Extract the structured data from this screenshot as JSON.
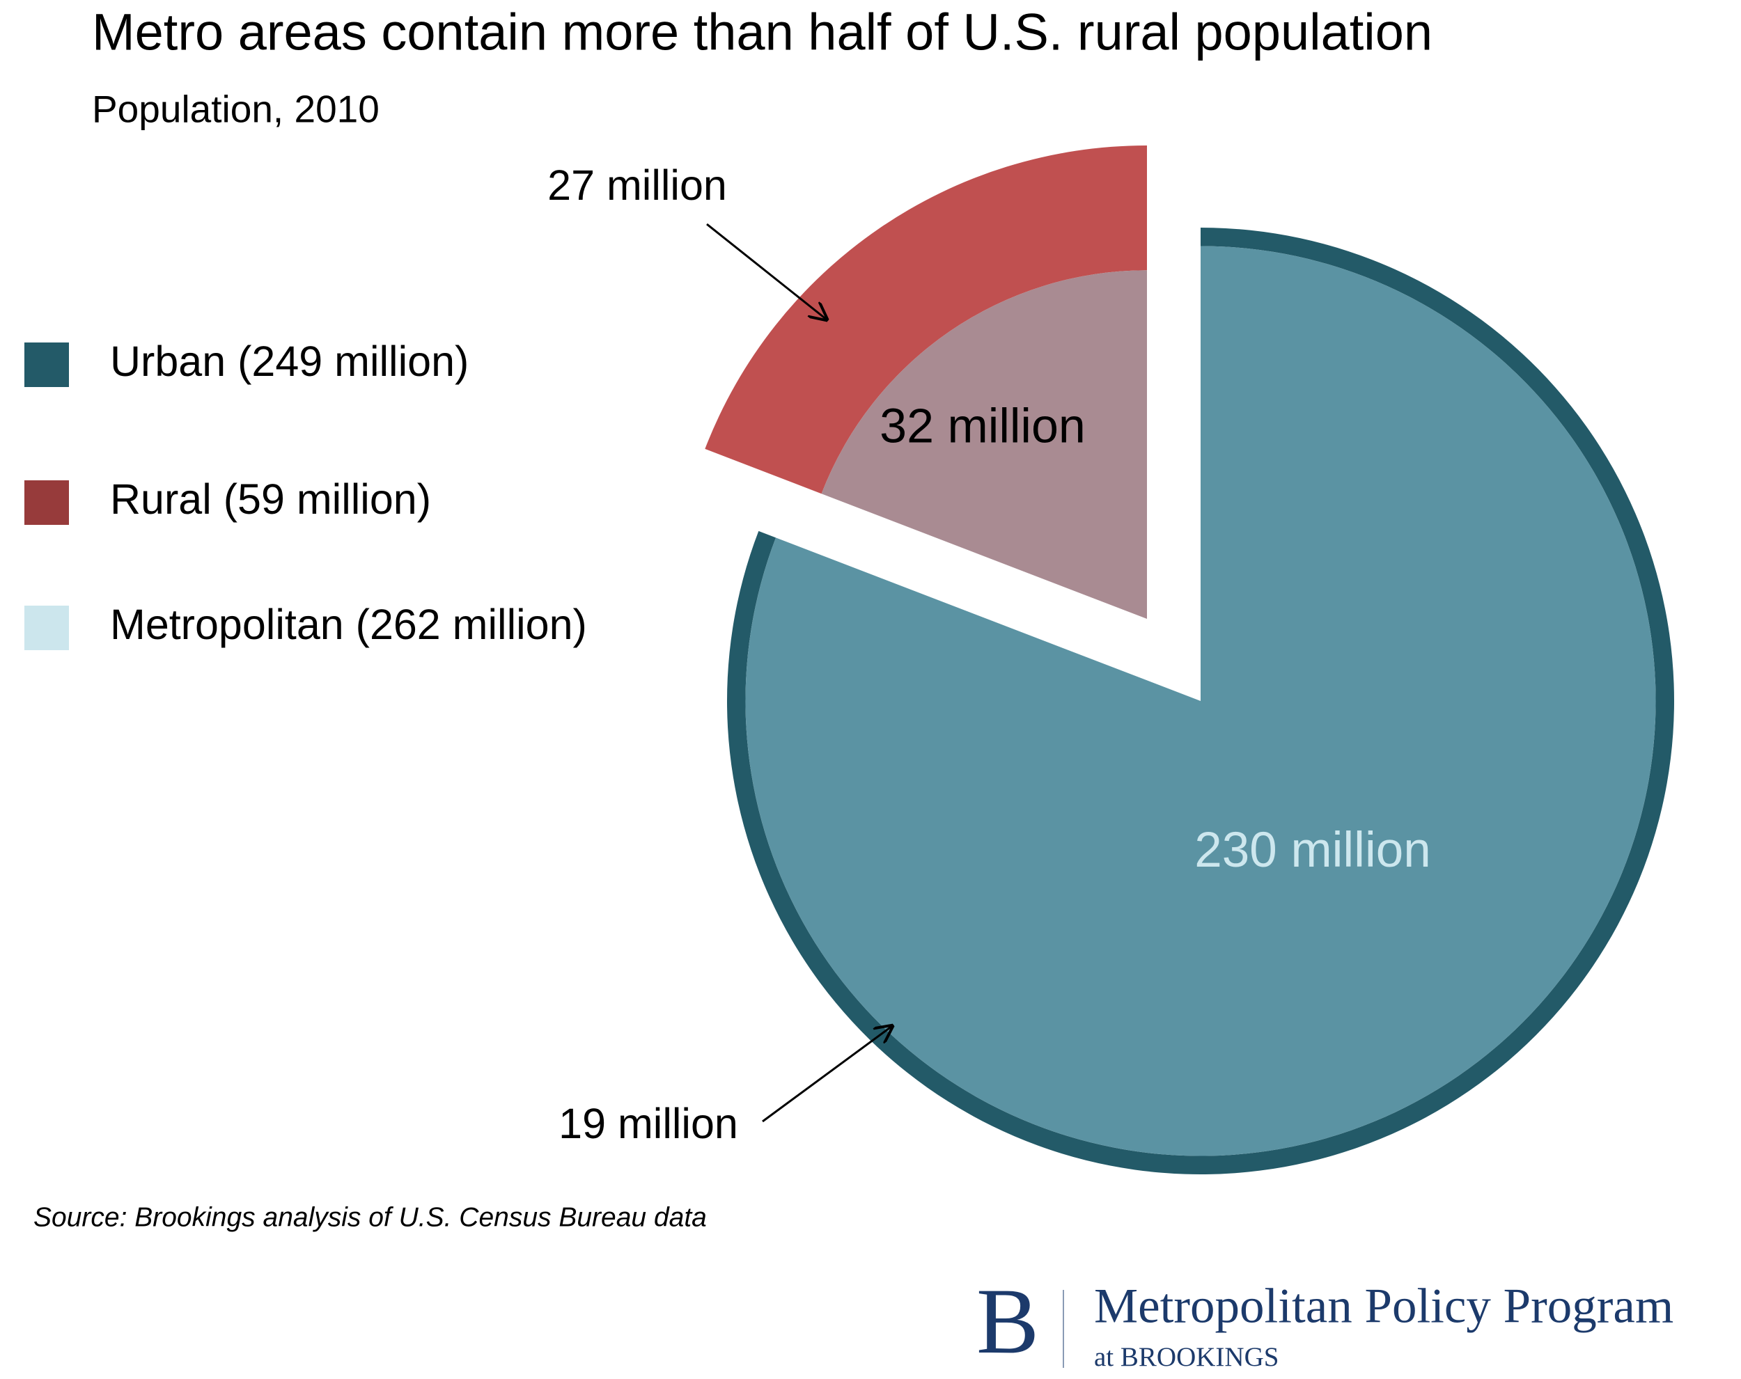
{
  "chart_data": {
    "type": "pie",
    "title": "Metro areas contain more than half of U.S. rural population",
    "subtitle": "Population, 2010",
    "source": "Source: Brookings analysis of U.S. Census Bureau data",
    "legend": [
      {
        "name": "Urban (249 million)",
        "color": "#235a68"
      },
      {
        "name": "Rural (59 million)",
        "color": "#973b3b"
      },
      {
        "name": "Metropolitan (262 million)",
        "color": "#cce6ed"
      }
    ],
    "slices": [
      {
        "values": [
          230,
          19
        ],
        "value_labels": [
          "230 million",
          "19 million"
        ],
        "colors": [
          "#5b93a3",
          "#235a68"
        ],
        "explode": false
      },
      {
        "values": [
          32,
          27
        ],
        "value_labels": [
          "32 million",
          "27 million"
        ],
        "colors": [
          "#a98b92",
          "#c05050"
        ],
        "explode": true
      }
    ]
  },
  "footer": {
    "logo_letter": "B",
    "program": "Metropolitan Policy Program",
    "org": "at BROOKINGS"
  }
}
